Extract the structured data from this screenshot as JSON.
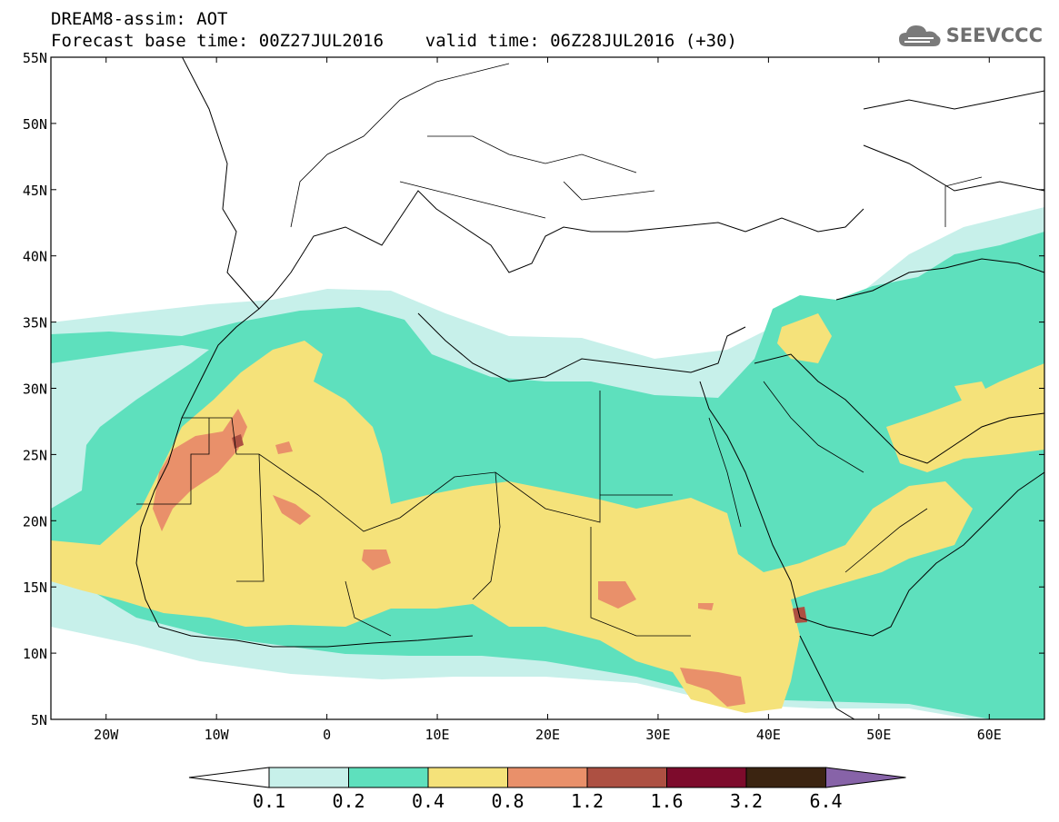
{
  "header": {
    "line1": "DREAM8-assim: AOT",
    "line2": "Forecast base time: 00Z27JUL2016    valid time: 06Z28JUL2016 (+30)"
  },
  "logo": {
    "text": "SEEVCCC",
    "icon": "cloud-icon"
  },
  "map": {
    "lat_ticks": [
      "55N",
      "50N",
      "45N",
      "40N",
      "35N",
      "30N",
      "25N",
      "20N",
      "15N",
      "10N",
      "5N"
    ],
    "lon_ticks": [
      "20W",
      "10W",
      "0",
      "10E",
      "20E",
      "30E",
      "40E",
      "50E",
      "60E"
    ],
    "lon_range": [
      -25,
      65
    ],
    "lat_range": [
      5,
      55
    ]
  },
  "legend": {
    "labels": [
      "0.1",
      "0.2",
      "0.4",
      "0.8",
      "1.2",
      "1.6",
      "3.2",
      "6.4"
    ],
    "colors": [
      "#ffffff",
      "#c7f0ea",
      "#5ee0bd",
      "#f5e27a",
      "#e9906a",
      "#ad5042",
      "#7d0b2c",
      "#3b2411",
      "#8763a8"
    ]
  }
}
